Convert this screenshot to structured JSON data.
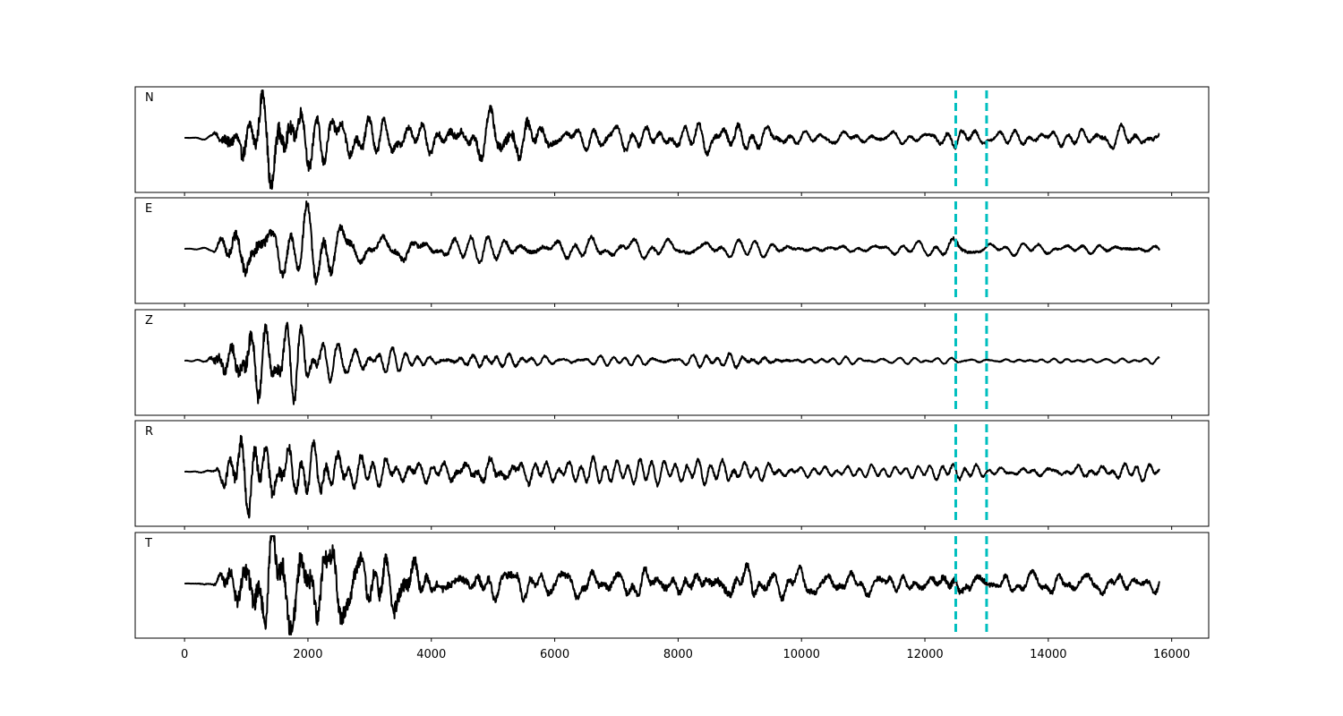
{
  "chart_data": {
    "type": "line",
    "title": "",
    "xlabel": "",
    "ylabel": "",
    "xlim": [
      -800,
      16600
    ],
    "xticks": [
      0,
      2000,
      4000,
      6000,
      8000,
      10000,
      12000,
      14000,
      16000
    ],
    "xtick_labels": [
      "0",
      "2000",
      "4000",
      "6000",
      "8000",
      "10000",
      "12000",
      "14000",
      "16000"
    ],
    "x_start": 0,
    "x_end": 15800,
    "onset_x": 450,
    "series": [
      {
        "name": "N",
        "color": "#000000",
        "envelope": [
          [
            0,
            0
          ],
          [
            450,
            0.05
          ],
          [
            700,
            0.6
          ],
          [
            1000,
            0.75
          ],
          [
            1500,
            1.0
          ],
          [
            2000,
            0.6
          ],
          [
            3000,
            0.4
          ],
          [
            4000,
            0.3
          ],
          [
            4800,
            0.45
          ],
          [
            5400,
            0.6
          ],
          [
            6000,
            0.25
          ],
          [
            8000,
            0.25
          ],
          [
            9000,
            0.3
          ],
          [
            10000,
            0.15
          ],
          [
            12000,
            0.12
          ],
          [
            12500,
            0.25
          ],
          [
            13000,
            0.12
          ],
          [
            15000,
            0.2
          ],
          [
            15800,
            0.2
          ]
        ]
      },
      {
        "name": "E",
        "color": "#000000",
        "envelope": [
          [
            0,
            0
          ],
          [
            450,
            0.05
          ],
          [
            700,
            0.55
          ],
          [
            1000,
            1.0
          ],
          [
            1500,
            0.6
          ],
          [
            2200,
            0.7
          ],
          [
            3000,
            0.35
          ],
          [
            3600,
            0.4
          ],
          [
            4000,
            0.25
          ],
          [
            5000,
            0.3
          ],
          [
            6000,
            0.25
          ],
          [
            8000,
            0.2
          ],
          [
            10000,
            0.15
          ],
          [
            12000,
            0.12
          ],
          [
            12500,
            0.25
          ],
          [
            13000,
            0.12
          ],
          [
            15000,
            0.15
          ],
          [
            15800,
            0.15
          ]
        ]
      },
      {
        "name": "Z",
        "color": "#000000",
        "envelope": [
          [
            0,
            0
          ],
          [
            350,
            0.05
          ],
          [
            500,
            0.55
          ],
          [
            1000,
            1.0
          ],
          [
            1600,
            0.8
          ],
          [
            2200,
            0.4
          ],
          [
            3000,
            0.25
          ],
          [
            4000,
            0.15
          ],
          [
            5000,
            0.2
          ],
          [
            6000,
            0.1
          ],
          [
            8000,
            0.1
          ],
          [
            9000,
            0.2
          ],
          [
            10000,
            0.08
          ],
          [
            12000,
            0.05
          ],
          [
            15800,
            0.05
          ]
        ]
      },
      {
        "name": "R",
        "color": "#000000",
        "envelope": [
          [
            0,
            0
          ],
          [
            450,
            0.05
          ],
          [
            700,
            0.6
          ],
          [
            1000,
            1.0
          ],
          [
            1500,
            0.7
          ],
          [
            2200,
            0.6
          ],
          [
            3000,
            0.35
          ],
          [
            4000,
            0.25
          ],
          [
            4900,
            0.4
          ],
          [
            6000,
            0.25
          ],
          [
            8000,
            0.2
          ],
          [
            9000,
            0.25
          ],
          [
            10000,
            0.12
          ],
          [
            12000,
            0.1
          ],
          [
            12500,
            0.2
          ],
          [
            13000,
            0.1
          ],
          [
            15500,
            0.2
          ],
          [
            15800,
            0.15
          ]
        ]
      },
      {
        "name": "T",
        "color": "#000000",
        "envelope": [
          [
            0,
            0
          ],
          [
            450,
            0.05
          ],
          [
            800,
            0.6
          ],
          [
            1100,
            0.9
          ],
          [
            1800,
            1.0
          ],
          [
            2300,
            0.85
          ],
          [
            3000,
            0.6
          ],
          [
            3500,
            0.75
          ],
          [
            4000,
            0.3
          ],
          [
            5000,
            0.35
          ],
          [
            6000,
            0.25
          ],
          [
            8000,
            0.3
          ],
          [
            9300,
            0.35
          ],
          [
            10000,
            0.25
          ],
          [
            12000,
            0.2
          ],
          [
            12500,
            0.3
          ],
          [
            13000,
            0.2
          ],
          [
            15800,
            0.2
          ]
        ]
      }
    ],
    "vlines": [
      {
        "x": 12500,
        "color": "#00bfbf",
        "style": "dashed"
      },
      {
        "x": 13000,
        "color": "#00bfbf",
        "style": "dashed"
      }
    ],
    "grid": false,
    "sharex": true
  }
}
